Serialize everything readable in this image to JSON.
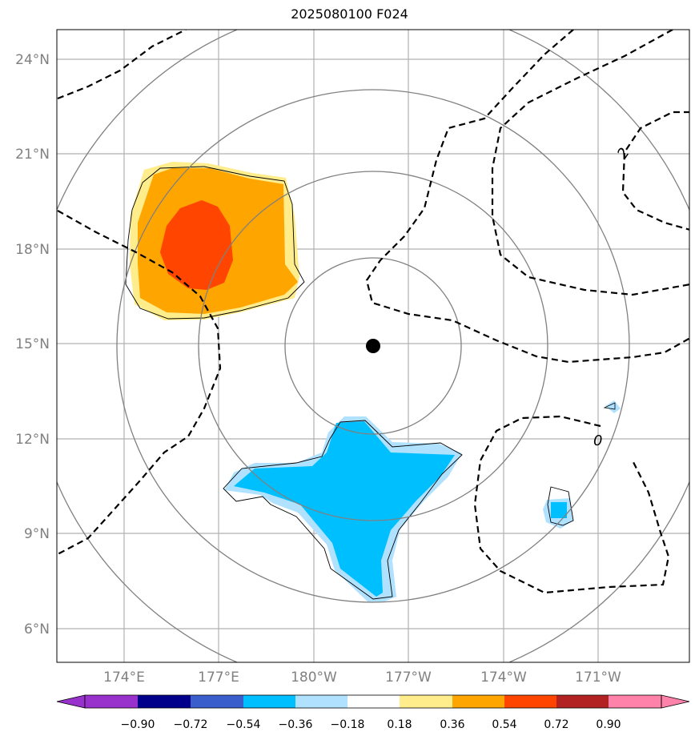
{
  "title": "2025080100 F024",
  "map": {
    "lat_labels": [
      "24°N",
      "21°N",
      "18°N",
      "15°N",
      "12°N",
      "9°N",
      "6°N"
    ],
    "lon_labels": [
      "174°E",
      "177°E",
      "180°W",
      "177°W",
      "174°W",
      "171°W"
    ],
    "center_marker": "storm-center-dot",
    "contour_labels": [
      "2",
      "0"
    ]
  },
  "colorbar": {
    "ticks": [
      "−0.90",
      "−0.72",
      "−0.54",
      "−0.36",
      "−0.18",
      "0.18",
      "0.36",
      "0.54",
      "0.72",
      "0.90"
    ],
    "colors": [
      "#9932CC",
      "#00008B",
      "#3A5FCD",
      "#00BFFF",
      "#B0E2FF",
      "#FFFFFF",
      "#FFEC8B",
      "#FFA500",
      "#FF4500",
      "#B22222",
      "#FF82AB"
    ]
  },
  "colors": {
    "grid": "#b0b0b0",
    "rings": "#808080",
    "contour": "#000000"
  }
}
